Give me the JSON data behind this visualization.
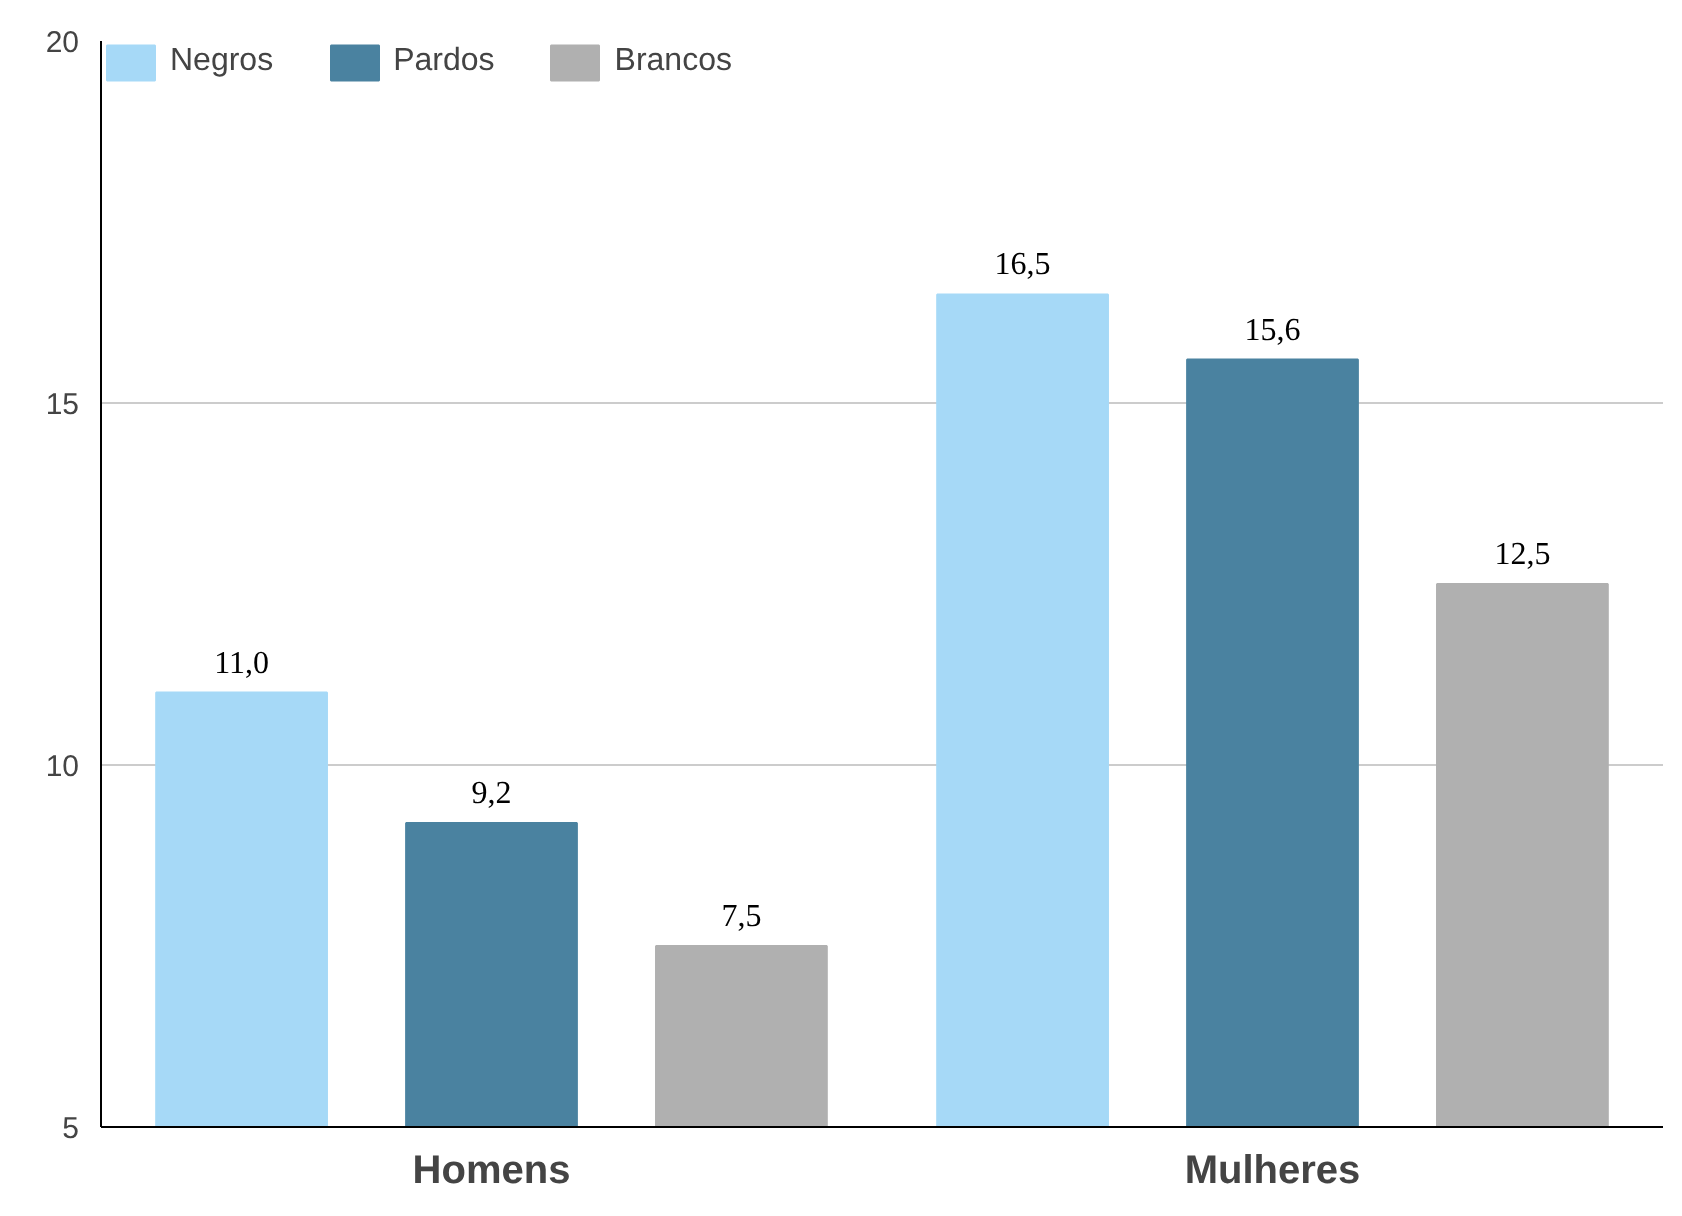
{
  "chart_data": {
    "type": "bar",
    "categories": [
      "Homens",
      "Mulheres"
    ],
    "series": [
      {
        "name": "Negros",
        "color": "#a6d9f7",
        "values": [
          11.0,
          16.5
        ],
        "value_labels": [
          "11,0",
          "16,5"
        ]
      },
      {
        "name": "Pardos",
        "color": "#4a82a0",
        "values": [
          9.2,
          15.6
        ],
        "value_labels": [
          "9,2",
          "15,6"
        ]
      },
      {
        "name": "Brancos",
        "color": "#b0b0b0",
        "values": [
          7.5,
          12.5
        ],
        "value_labels": [
          "7,5",
          "12,5"
        ]
      }
    ],
    "ylim": [
      5,
      20
    ],
    "yticks": [
      5,
      10,
      15,
      20
    ],
    "grid": "y",
    "legend": "top left"
  }
}
